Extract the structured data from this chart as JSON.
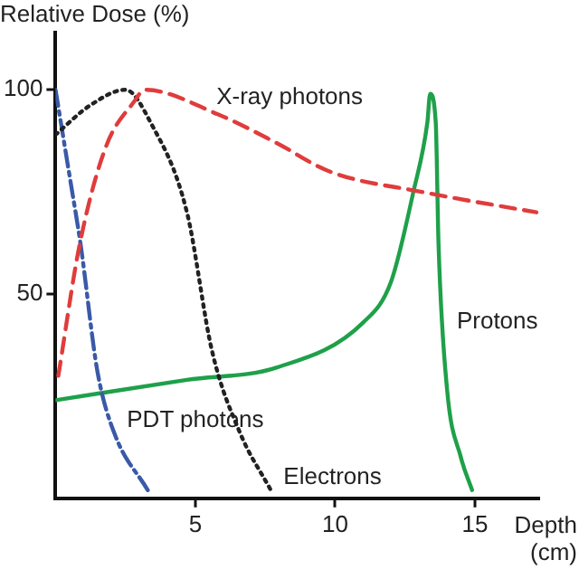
{
  "chart_data": {
    "type": "line",
    "xlabel": "Depth\n(cm)",
    "ylabel": "Relative Dose (%)",
    "xlim": [
      0,
      17.3
    ],
    "ylim": [
      0,
      114
    ],
    "xticks": [
      5,
      10,
      15
    ],
    "yticks": [
      50,
      100
    ],
    "grid": false,
    "legend": false,
    "marker": "none",
    "series": [
      {
        "color": "#e03c3c",
        "line_style": "dashed",
        "x": [
          0.1,
          0.86,
          1.8,
          2.8,
          3.2,
          5.8,
          7.9,
          9.8,
          13.1,
          17.2
        ],
        "values": [
          30,
          62,
          86,
          97,
          100,
          94,
          87,
          80,
          75,
          70
        ]
      },
      {
        "color": "#222222",
        "line_style": "dotted",
        "x": [
          0,
          1.2,
          2.5,
          3.4,
          4.7,
          5.6,
          6.6,
          7.7
        ],
        "values": [
          89,
          96,
          100,
          92,
          70,
          36,
          16,
          2
        ]
      },
      {
        "color": "#3a5aa8",
        "line_style": "dashdot",
        "x": [
          0,
          0.5,
          0.9,
          1.5,
          2.1,
          3.3
        ],
        "values": [
          100,
          79,
          62,
          31,
          16,
          2
        ]
      },
      {
        "color": "#1fa04a",
        "line_style": "solid",
        "x": [
          0,
          4.7,
          7.9,
          11,
          12,
          12.8,
          13.3,
          13.4,
          13.6,
          13.7,
          14,
          14.5,
          14.9
        ],
        "values": [
          24,
          29,
          32,
          43,
          53,
          75,
          92,
          99,
          92,
          62,
          27,
          10,
          2
        ]
      }
    ],
    "annotations": [
      {
        "text": "X-ray photons",
        "x": 5.3,
        "y": 95
      },
      {
        "text": "Electrons",
        "x": 7.7,
        "y": 2
      },
      {
        "text": "PDT photons",
        "x": 2.1,
        "y": 16
      },
      {
        "text": "Protons",
        "x": 13.9,
        "y": 40
      }
    ]
  }
}
